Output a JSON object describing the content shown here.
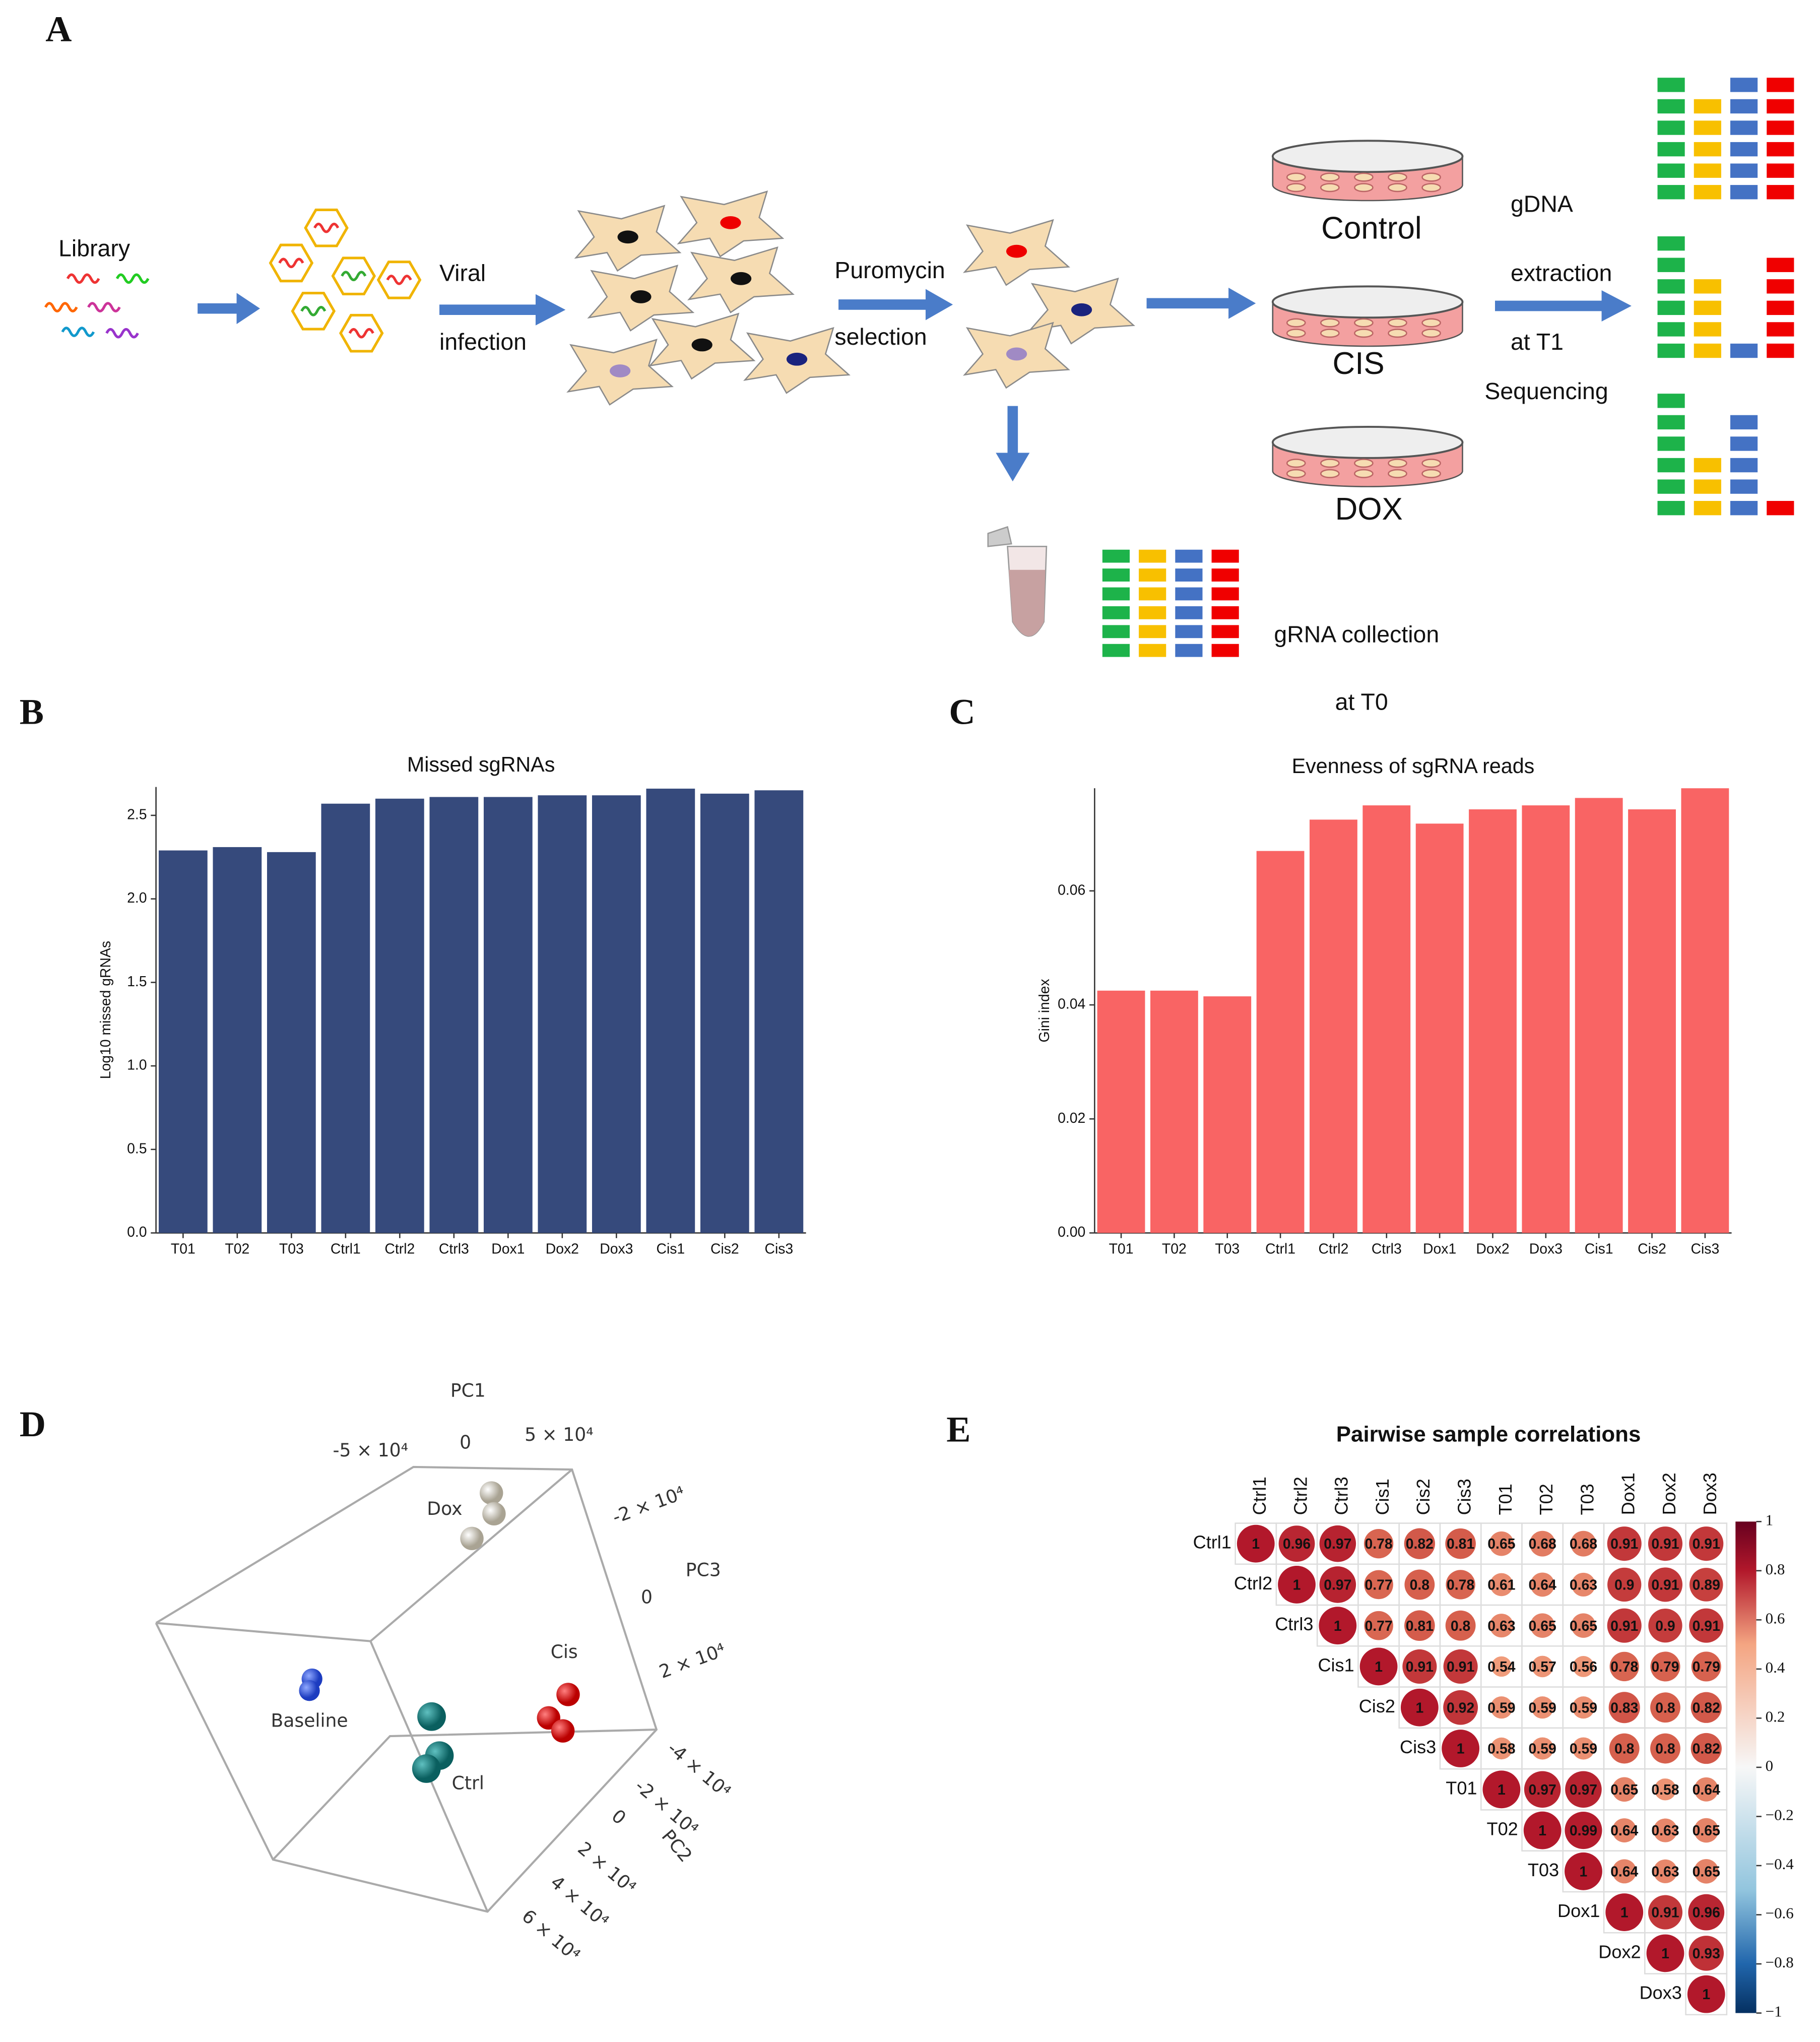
{
  "panel_labels": [
    "A",
    "B",
    "C",
    "D",
    "E"
  ],
  "workflow": {
    "library": "Library",
    "viral": "Viral",
    "infection": "infection",
    "puromycin": "Puromycin",
    "selection": "selection",
    "control": "Control",
    "cis": "CIS",
    "dox": "DOX",
    "gdna": "gDNA",
    "extraction": "extraction",
    "at_t1": "at T1",
    "sequencing": "Sequencing",
    "grna_collection": "gRNA collection",
    "at_t0": "at T0"
  },
  "pca": {
    "pc1": "PC1",
    "pc2": "PC2",
    "pc3": "PC3",
    "pc1_ticks": [
      "-5 × 10⁴",
      "0",
      "5 × 10⁴"
    ],
    "pc3_ticks": [
      "-2 × 10⁴",
      "0",
      "2 × 10⁴"
    ],
    "pc2_ticks": [
      "-4 × 10⁴",
      "-2 × 10⁴",
      "0",
      "2 × 10⁴",
      "4 × 10⁴",
      "6 × 10⁴"
    ],
    "groups": [
      "Dox",
      "Cis",
      "Baseline",
      "Ctrl"
    ]
  },
  "chart_data": [
    {
      "type": "bar",
      "title": "Missed sgRNAs",
      "ylabel": "Log10 missed gRNAs",
      "categories": [
        "T01",
        "T02",
        "T03",
        "Ctrl1",
        "Ctrl2",
        "Ctrl3",
        "Dox1",
        "Dox2",
        "Dox3",
        "Cis1",
        "Cis2",
        "Cis3"
      ],
      "values": [
        2.29,
        2.31,
        2.28,
        2.57,
        2.6,
        2.61,
        2.61,
        2.62,
        2.62,
        2.66,
        2.63,
        2.65
      ],
      "color": "#364a7c",
      "ylim": [
        0,
        2.67
      ],
      "yticks": [
        {
          "value": 0,
          "label": "0.0"
        },
        0.5,
        {
          "value": 1,
          "label": "1.0"
        },
        1.5,
        {
          "value": 2,
          "label": "2.0"
        },
        2.5
      ]
    },
    {
      "type": "bar",
      "title": "Evenness of sgRNA reads",
      "ylabel": "Gini index",
      "categories": [
        "T01",
        "T02",
        "T03",
        "Ctrl1",
        "Ctrl2",
        "Ctrl3",
        "Dox1",
        "Dox2",
        "Dox3",
        "Cis1",
        "Cis2",
        "Cis3"
      ],
      "values": [
        0.0425,
        0.0425,
        0.0415,
        0.067,
        0.0725,
        0.075,
        0.0718,
        0.0743,
        0.075,
        0.0763,
        0.0743,
        0.078
      ],
      "color": "#f96464",
      "ylim": [
        0,
        0.078
      ],
      "yticks": [
        {
          "value": 0,
          "label": "0.00"
        },
        0.02,
        0.04,
        0.06
      ]
    },
    {
      "type": "corrplot",
      "title": "Pairwise sample correlations",
      "categories": [
        "Ctrl1",
        "Ctrl2",
        "Ctrl3",
        "Cis1",
        "Cis2",
        "Cis3",
        "T01",
        "T02",
        "T03",
        "Dox1",
        "Dox2",
        "Dox3"
      ],
      "values": [
        [
          1,
          0.96,
          0.97,
          0.78,
          0.82,
          0.81,
          0.65,
          0.68,
          0.68,
          0.91,
          0.91,
          0.91
        ],
        [
          null,
          1,
          0.97,
          0.77,
          0.8,
          0.78,
          0.61,
          0.64,
          0.63,
          0.9,
          0.91,
          0.89
        ],
        [
          null,
          null,
          1,
          0.77,
          0.81,
          0.8,
          0.63,
          0.65,
          0.65,
          0.91,
          0.9,
          0.91
        ],
        [
          null,
          null,
          null,
          1,
          0.91,
          0.91,
          0.54,
          0.57,
          0.56,
          0.78,
          0.79,
          0.79
        ],
        [
          null,
          null,
          null,
          null,
          1,
          0.92,
          0.59,
          0.59,
          0.59,
          0.83,
          0.8,
          0.82
        ],
        [
          null,
          null,
          null,
          null,
          null,
          1,
          0.58,
          0.59,
          0.59,
          0.8,
          0.8,
          0.82
        ],
        [
          null,
          null,
          null,
          null,
          null,
          null,
          1,
          0.97,
          0.97,
          0.65,
          0.58,
          0.64
        ],
        [
          null,
          null,
          null,
          null,
          null,
          null,
          null,
          1,
          0.99,
          0.64,
          0.63,
          0.65
        ],
        [
          null,
          null,
          null,
          null,
          null,
          null,
          null,
          null,
          1,
          0.64,
          0.63,
          0.65
        ],
        [
          null,
          null,
          null,
          null,
          null,
          null,
          null,
          null,
          null,
          1,
          0.91,
          0.96
        ],
        [
          null,
          null,
          null,
          null,
          null,
          null,
          null,
          null,
          null,
          null,
          1,
          0.93
        ],
        [
          null,
          null,
          null,
          null,
          null,
          null,
          null,
          null,
          null,
          null,
          null,
          1
        ]
      ],
      "clim": [
        -1,
        1
      ],
      "colorbar_ticks": [
        1,
        0.8,
        0.6,
        0.4,
        0.2,
        0,
        {
          "value": -0.2,
          "label": "−0.2"
        },
        {
          "value": -0.4,
          "label": "−0.4"
        },
        {
          "value": -0.6,
          "label": "−0.6"
        },
        {
          "value": -0.8,
          "label": "−0.8"
        },
        {
          "value": -1,
          "label": "−1"
        }
      ]
    }
  ]
}
